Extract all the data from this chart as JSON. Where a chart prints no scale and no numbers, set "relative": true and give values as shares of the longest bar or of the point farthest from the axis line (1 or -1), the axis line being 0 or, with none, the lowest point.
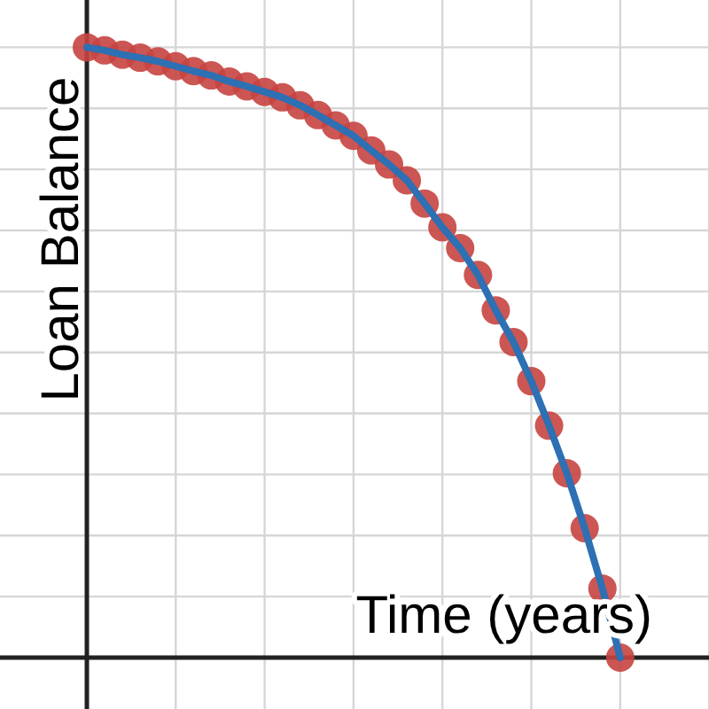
{
  "chart_data": {
    "type": "line",
    "xlabel": "Time (years)",
    "ylabel": "Loan Balance",
    "relative": true,
    "grid": true,
    "marker": "circle",
    "color": "#2d70b3",
    "categories": [
      null,
      null,
      null,
      null,
      null,
      null,
      null,
      null,
      null,
      null,
      null,
      null,
      null,
      null,
      null,
      null,
      null,
      null,
      null,
      null,
      null,
      null,
      null,
      null,
      null,
      null,
      null,
      null,
      null,
      null,
      null
    ],
    "values": [
      1.0,
      0.995,
      0.988,
      0.983,
      0.977,
      0.969,
      0.961,
      0.954,
      0.944,
      0.936,
      0.927,
      0.918,
      0.905,
      0.889,
      0.872,
      0.855,
      0.831,
      0.808,
      0.782,
      0.744,
      0.705,
      0.671,
      0.627,
      0.569,
      0.517,
      0.453,
      0.38,
      0.302,
      0.212,
      0.113,
      0.0
    ]
  }
}
